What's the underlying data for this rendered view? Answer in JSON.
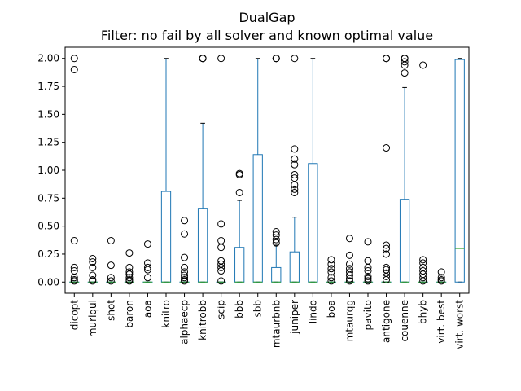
{
  "chart_data": {
    "type": "box",
    "title": "DualGap",
    "subtitle": "Filter: no fail by all solver and known optimal value",
    "xlabel": "",
    "ylabel": "",
    "ylim": [
      -0.1,
      2.1
    ],
    "yticks": [
      0.0,
      0.25,
      0.5,
      0.75,
      1.0,
      1.25,
      1.5,
      1.75,
      2.0
    ],
    "ytick_labels": [
      "0.00",
      "0.25",
      "0.50",
      "0.75",
      "1.00",
      "1.25",
      "1.50",
      "1.75",
      "2.00"
    ],
    "grid": false,
    "categories": [
      "dicopt",
      "muriqui",
      "shot",
      "baron",
      "aoa",
      "knitro",
      "alphaecp",
      "knitrobb",
      "scip",
      "bbb",
      "sbb",
      "mtaurbnb",
      "juniper",
      "lindo",
      "boa",
      "mtaurqg",
      "pavito",
      "antigone",
      "couenne",
      "bhyb",
      "virt. best",
      "virt. worst"
    ],
    "boxes": [
      {
        "name": "dicopt",
        "whislo": 0.0,
        "q1": 0.0,
        "med": 0.0,
        "q3": 0.0,
        "whishi": 0.0,
        "fliers": [
          2.0,
          1.9,
          0.37,
          0.13,
          0.1,
          0.04,
          0.02,
          0.01
        ]
      },
      {
        "name": "muriqui",
        "whislo": 0.0,
        "q1": 0.0,
        "med": 0.0,
        "q3": 0.0,
        "whishi": 0.0,
        "fliers": [
          0.21,
          0.18,
          0.13,
          0.06,
          0.02,
          0.01
        ]
      },
      {
        "name": "shot",
        "whislo": 0.0,
        "q1": 0.0,
        "med": 0.0,
        "q3": 0.0,
        "whishi": 0.0,
        "fliers": [
          0.37,
          0.15,
          0.04,
          0.01
        ]
      },
      {
        "name": "baron",
        "whislo": 0.0,
        "q1": 0.0,
        "med": 0.0,
        "q3": 0.0,
        "whishi": 0.0,
        "fliers": [
          0.26,
          0.13,
          0.09,
          0.07,
          0.04,
          0.02,
          0.01
        ]
      },
      {
        "name": "aoa",
        "whislo": 0.0,
        "q1": 0.0,
        "med": 0.0,
        "q3": 0.0,
        "whishi": 0.0,
        "fliers": [
          0.34,
          0.17,
          0.13,
          0.11,
          0.04
        ]
      },
      {
        "name": "knitro",
        "whislo": 0.0,
        "q1": 0.0,
        "med": 0.0,
        "q3": 0.81,
        "whishi": 2.0,
        "fliers": []
      },
      {
        "name": "alphaecp",
        "whislo": 0.0,
        "q1": 0.0,
        "med": 0.0,
        "q3": 0.0,
        "whishi": 0.0,
        "fliers": [
          0.55,
          0.43,
          0.22,
          0.13,
          0.09,
          0.06,
          0.04,
          0.02,
          0.01
        ]
      },
      {
        "name": "knitrobb",
        "whislo": 0.0,
        "q1": 0.0,
        "med": 0.0,
        "q3": 0.66,
        "whishi": 1.42,
        "fliers": [
          2.0,
          2.0,
          2.0
        ]
      },
      {
        "name": "scip",
        "whislo": 0.0,
        "q1": 0.0,
        "med": 0.0,
        "q3": 0.0,
        "whishi": 0.0,
        "fliers": [
          2.0,
          0.52,
          0.37,
          0.31,
          0.19,
          0.16,
          0.13,
          0.1,
          0.01
        ]
      },
      {
        "name": "bbb",
        "whislo": 0.0,
        "q1": 0.0,
        "med": 0.0,
        "q3": 0.31,
        "whishi": 0.73,
        "fliers": [
          0.97,
          0.96,
          0.8
        ]
      },
      {
        "name": "sbb",
        "whislo": 0.0,
        "q1": 0.0,
        "med": 0.0,
        "q3": 1.14,
        "whishi": 2.0,
        "fliers": []
      },
      {
        "name": "mtaurbnb",
        "whislo": 0.0,
        "q1": 0.0,
        "med": 0.0,
        "q3": 0.13,
        "whishi": 0.33,
        "fliers": [
          2.0,
          2.0,
          2.0,
          0.45,
          0.42,
          0.38,
          0.35
        ]
      },
      {
        "name": "juniper",
        "whislo": 0.0,
        "q1": 0.0,
        "med": 0.0,
        "q3": 0.27,
        "whishi": 0.58,
        "fliers": [
          2.0,
          1.19,
          1.1,
          1.05,
          0.96,
          0.93,
          0.87,
          0.83,
          0.8
        ]
      },
      {
        "name": "lindo",
        "whislo": 0.0,
        "q1": 0.0,
        "med": 0.0,
        "q3": 1.06,
        "whishi": 2.0,
        "fliers": []
      },
      {
        "name": "boa",
        "whislo": 0.0,
        "q1": 0.0,
        "med": 0.0,
        "q3": 0.0,
        "whishi": 0.0,
        "fliers": [
          0.2,
          0.16,
          0.12,
          0.09,
          0.04,
          0.01
        ]
      },
      {
        "name": "mtaurqg",
        "whislo": 0.0,
        "q1": 0.0,
        "med": 0.0,
        "q3": 0.0,
        "whishi": 0.0,
        "fliers": [
          0.39,
          0.24,
          0.16,
          0.12,
          0.09,
          0.06,
          0.03,
          0.01
        ]
      },
      {
        "name": "pavito",
        "whislo": 0.0,
        "q1": 0.0,
        "med": 0.0,
        "q3": 0.0,
        "whishi": 0.0,
        "fliers": [
          0.36,
          0.19,
          0.13,
          0.1,
          0.05,
          0.03,
          0.01
        ]
      },
      {
        "name": "antigone",
        "whislo": 0.0,
        "q1": 0.0,
        "med": 0.0,
        "q3": 0.0,
        "whishi": 0.0,
        "fliers": [
          2.0,
          2.0,
          1.2,
          0.33,
          0.3,
          0.25,
          0.13,
          0.11,
          0.08,
          0.05,
          0.02
        ]
      },
      {
        "name": "couenne",
        "whislo": 0.0,
        "q1": 0.0,
        "med": 0.0,
        "q3": 0.74,
        "whishi": 1.74,
        "fliers": [
          2.0,
          2.0,
          2.0,
          1.97,
          1.94,
          1.87
        ]
      },
      {
        "name": "bhyb",
        "whislo": 0.0,
        "q1": 0.0,
        "med": 0.0,
        "q3": 0.0,
        "whishi": 0.0,
        "fliers": [
          1.94,
          0.2,
          0.17,
          0.13,
          0.1,
          0.07,
          0.04,
          0.01
        ]
      },
      {
        "name": "virt. best",
        "whislo": 0.0,
        "q1": 0.0,
        "med": 0.0,
        "q3": 0.0,
        "whishi": 0.0,
        "fliers": [
          0.09,
          0.04,
          0.02,
          0.01
        ]
      },
      {
        "name": "virt. worst",
        "whislo": 0.0,
        "q1": 0.0,
        "med": 0.3,
        "q3": 1.99,
        "whishi": 2.0,
        "fliers": []
      }
    ]
  }
}
